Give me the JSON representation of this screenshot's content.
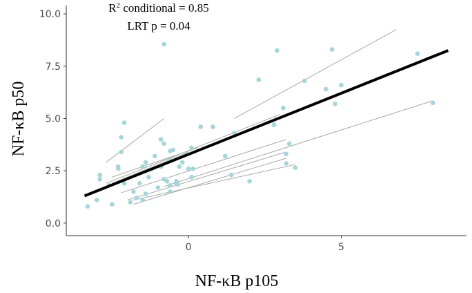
{
  "chart_data": {
    "type": "scatter",
    "title": "",
    "xlabel": "NF-κB p105",
    "ylabel": "NF-κB p50",
    "xlim": [
      -4,
      9.1
    ],
    "ylim": [
      -0.6,
      10.4
    ],
    "xticks": [
      0,
      5
    ],
    "xtick_labels": [
      "0",
      "5"
    ],
    "yticks": [
      0,
      2.5,
      5,
      7.5,
      10
    ],
    "ytick_labels": [
      "0.0",
      "2.5",
      "5.0",
      "7.5",
      "10.0"
    ],
    "grid": false,
    "legend": "none",
    "annotations": {
      "r2_prefix": "R",
      "r2_sup": "2",
      "r2_rest": " conditional = 0.85",
      "lrt": "LRT p = 0.04"
    },
    "colors": {
      "points": "#a6d5d9",
      "group_lines": "#a8a8a8",
      "fit_line": "#000000",
      "axis": "#333333"
    },
    "points": [
      {
        "x": -3.3,
        "y": 0.8
      },
      {
        "x": -3.0,
        "y": 1.1
      },
      {
        "x": -2.9,
        "y": 2.1
      },
      {
        "x": -2.9,
        "y": 2.3
      },
      {
        "x": -2.6,
        "y": 1.8
      },
      {
        "x": -2.5,
        "y": 0.9
      },
      {
        "x": -2.3,
        "y": 2.6
      },
      {
        "x": -2.3,
        "y": 2.7
      },
      {
        "x": -2.2,
        "y": 3.4
      },
      {
        "x": -2.2,
        "y": 4.1
      },
      {
        "x": -2.1,
        "y": 4.8
      },
      {
        "x": -2.1,
        "y": 1.9
      },
      {
        "x": -1.9,
        "y": 1.0
      },
      {
        "x": -1.8,
        "y": 1.5
      },
      {
        "x": -1.7,
        "y": 1.2
      },
      {
        "x": -1.6,
        "y": 1.9
      },
      {
        "x": -1.5,
        "y": 2.7
      },
      {
        "x": -1.5,
        "y": 1.1
      },
      {
        "x": -1.4,
        "y": 1.4
      },
      {
        "x": -1.4,
        "y": 2.9
      },
      {
        "x": -1.3,
        "y": 2.2
      },
      {
        "x": -1.2,
        "y": 2.6
      },
      {
        "x": -1.1,
        "y": 3.2
      },
      {
        "x": -1.0,
        "y": 1.7
      },
      {
        "x": -0.9,
        "y": 2.7
      },
      {
        "x": -0.8,
        "y": 3.8
      },
      {
        "x": -0.8,
        "y": 2.1
      },
      {
        "x": -0.7,
        "y": 2.0
      },
      {
        "x": -0.6,
        "y": 3.0
      },
      {
        "x": -0.5,
        "y": 3.5
      },
      {
        "x": -0.4,
        "y": 1.9
      },
      {
        "x": -0.4,
        "y": 2.0
      },
      {
        "x": -0.3,
        "y": 2.7
      },
      {
        "x": -0.2,
        "y": 2.9
      },
      {
        "x": -0.1,
        "y": 3.3
      },
      {
        "x": -0.8,
        "y": 8.55
      },
      {
        "x": -0.6,
        "y": 1.5
      },
      {
        "x": -0.6,
        "y": 1.8
      },
      {
        "x": -0.35,
        "y": 1.85
      },
      {
        "x": -0.6,
        "y": 3.45
      },
      {
        "x": -0.9,
        "y": 4.0
      },
      {
        "x": 0.0,
        "y": 2.6
      },
      {
        "x": 0.1,
        "y": 3.6
      },
      {
        "x": 0.1,
        "y": 2.2
      },
      {
        "x": 0.15,
        "y": 2.6
      },
      {
        "x": 0.4,
        "y": 4.6
      },
      {
        "x": 0.8,
        "y": 4.6
      },
      {
        "x": 1.2,
        "y": 3.2
      },
      {
        "x": 1.4,
        "y": 2.3
      },
      {
        "x": 1.5,
        "y": 4.3
      },
      {
        "x": 2.0,
        "y": 2.0
      },
      {
        "x": 2.3,
        "y": 6.85
      },
      {
        "x": 2.8,
        "y": 4.7
      },
      {
        "x": 2.9,
        "y": 8.25
      },
      {
        "x": 3.1,
        "y": 5.5
      },
      {
        "x": 3.2,
        "y": 3.3
      },
      {
        "x": 3.2,
        "y": 2.85
      },
      {
        "x": 3.3,
        "y": 3.8
      },
      {
        "x": 3.5,
        "y": 2.65
      },
      {
        "x": 3.8,
        "y": 6.8
      },
      {
        "x": 4.5,
        "y": 6.4
      },
      {
        "x": 4.7,
        "y": 8.3
      },
      {
        "x": 4.8,
        "y": 5.7
      },
      {
        "x": 5.0,
        "y": 6.6
      },
      {
        "x": 7.5,
        "y": 8.1
      },
      {
        "x": 8.0,
        "y": 5.75
      }
    ],
    "group_lines": [
      {
        "x": [
          -2.7,
          -0.8
        ],
        "y": [
          2.9,
          5.0
        ]
      },
      {
        "x": [
          -2.5,
          0.3
        ],
        "y": [
          2.2,
          3.6
        ]
      },
      {
        "x": [
          -2.5,
          0.0
        ],
        "y": [
          1.9,
          3.4
        ]
      },
      {
        "x": [
          1.5,
          6.8
        ],
        "y": [
          5.0,
          9.25
        ]
      },
      {
        "x": [
          -2.7,
          3.0
        ],
        "y": [
          1.9,
          5.2
        ]
      },
      {
        "x": [
          -2.2,
          3.2
        ],
        "y": [
          1.45,
          4.0
        ]
      },
      {
        "x": [
          -2.0,
          3.2
        ],
        "y": [
          1.1,
          3.4
        ]
      },
      {
        "x": [
          -1.8,
          3.2
        ],
        "y": [
          0.9,
          3.1
        ]
      },
      {
        "x": [
          -1.8,
          3.5
        ],
        "y": [
          1.1,
          2.8
        ]
      },
      {
        "x": [
          -0.8,
          8.0
        ],
        "y": [
          1.75,
          5.85
        ]
      }
    ],
    "fit_line": {
      "x": [
        -3.4,
        8.5
      ],
      "y": [
        1.3,
        8.25
      ]
    }
  }
}
